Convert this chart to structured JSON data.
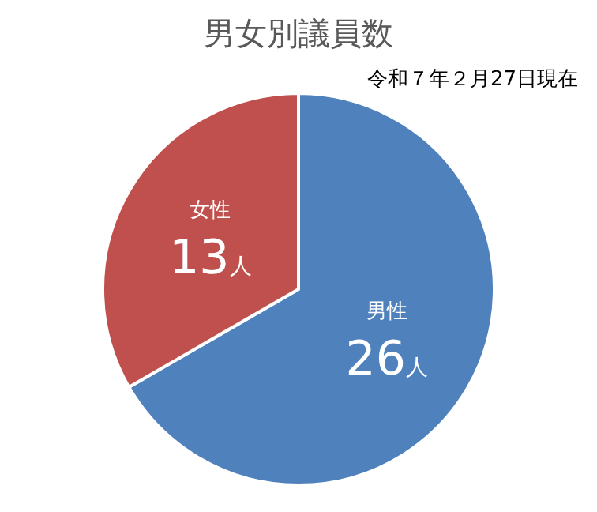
{
  "chart_data": {
    "type": "pie",
    "title": "男女別議員数",
    "annotations": [
      "令和７年２月27日現在"
    ],
    "categories": [
      "男性",
      "女性"
    ],
    "values": [
      26,
      13
    ],
    "colors": [
      "#4f81bd",
      "#c0504d"
    ],
    "value_labels": [
      "26人",
      "13人"
    ],
    "legend": false
  }
}
